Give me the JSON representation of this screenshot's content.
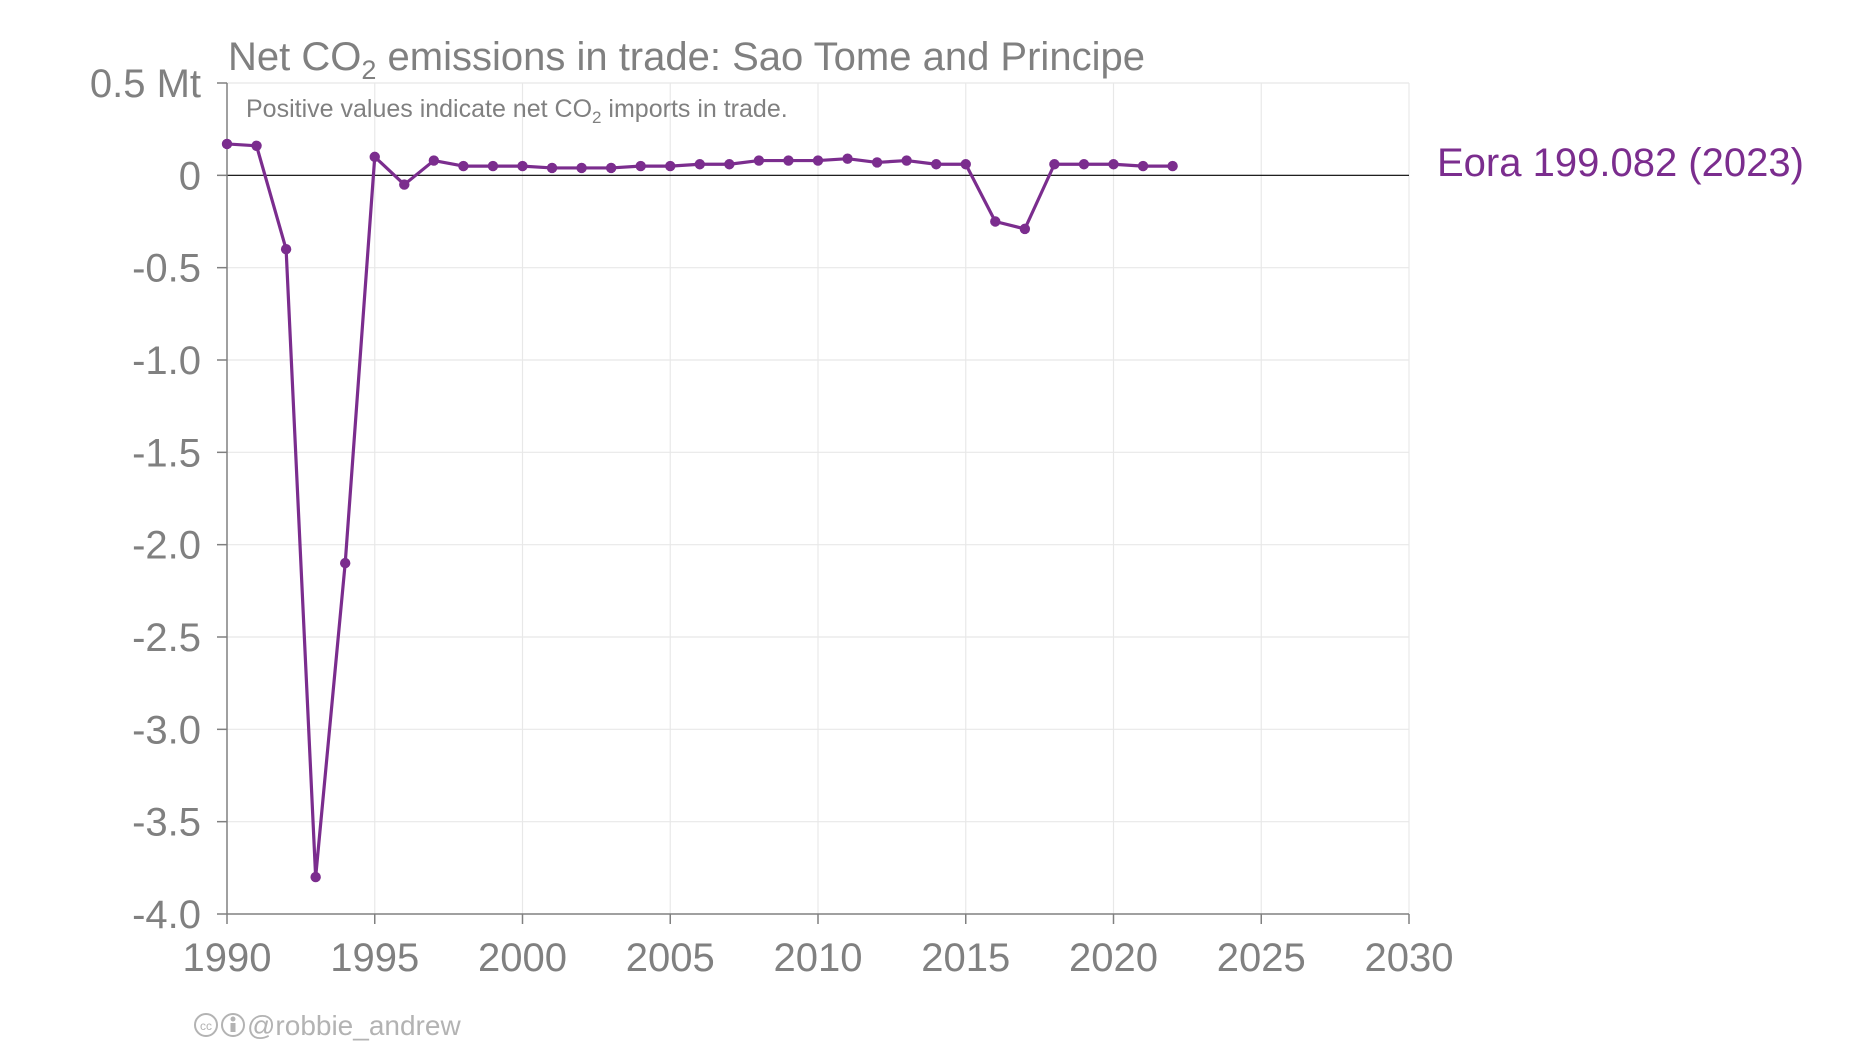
{
  "chart_data": {
    "type": "line",
    "title_prefix": "Net CO",
    "title_sub": "2",
    "title_suffix": " emissions in trade: Sao Tome and Principe",
    "subtitle_prefix": "Positive values indicate net CO",
    "subtitle_sub": "2",
    "subtitle_suffix": " imports in trade.",
    "y_unit_label": "0.5 Mt",
    "xlim": [
      1990,
      2030
    ],
    "ylim": [
      -4.0,
      0.5
    ],
    "x_ticks": [
      1990,
      1995,
      2000,
      2005,
      2010,
      2015,
      2020,
      2025,
      2030
    ],
    "x_tick_labels": [
      "1990",
      "1995",
      "2000",
      "2005",
      "2010",
      "2015",
      "2020",
      "2025",
      "2030"
    ],
    "y_ticks": [
      0.5,
      0,
      -0.5,
      -1.0,
      -1.5,
      -2.0,
      -2.5,
      -3.0,
      -3.5,
      -4.0
    ],
    "y_tick_labels": [
      "0.5 Mt",
      "0",
      "-0.5",
      "-1.0",
      "-1.5",
      "-2.0",
      "-2.5",
      "-3.0",
      "-3.5",
      "-4.0"
    ],
    "grid": true,
    "zero_line": true,
    "series": [
      {
        "name": "Eora",
        "label": "Eora 199.082 (2023)",
        "color": "#7b2d8e",
        "x": [
          1990,
          1991,
          1992,
          1993,
          1994,
          1995,
          1996,
          1997,
          1998,
          1999,
          2000,
          2001,
          2002,
          2003,
          2004,
          2005,
          2006,
          2007,
          2008,
          2009,
          2010,
          2011,
          2012,
          2013,
          2014,
          2015,
          2016,
          2017,
          2018,
          2019,
          2020,
          2021,
          2022
        ],
        "y": [
          0.17,
          0.16,
          -0.4,
          -3.8,
          -2.1,
          0.1,
          -0.05,
          0.08,
          0.05,
          0.05,
          0.05,
          0.04,
          0.04,
          0.04,
          0.05,
          0.05,
          0.06,
          0.06,
          0.08,
          0.08,
          0.08,
          0.09,
          0.07,
          0.08,
          0.06,
          0.06,
          -0.25,
          -0.29,
          0.06,
          0.06,
          0.06,
          0.05,
          0.05
        ]
      }
    ],
    "credit": "@robbie_andrew"
  }
}
